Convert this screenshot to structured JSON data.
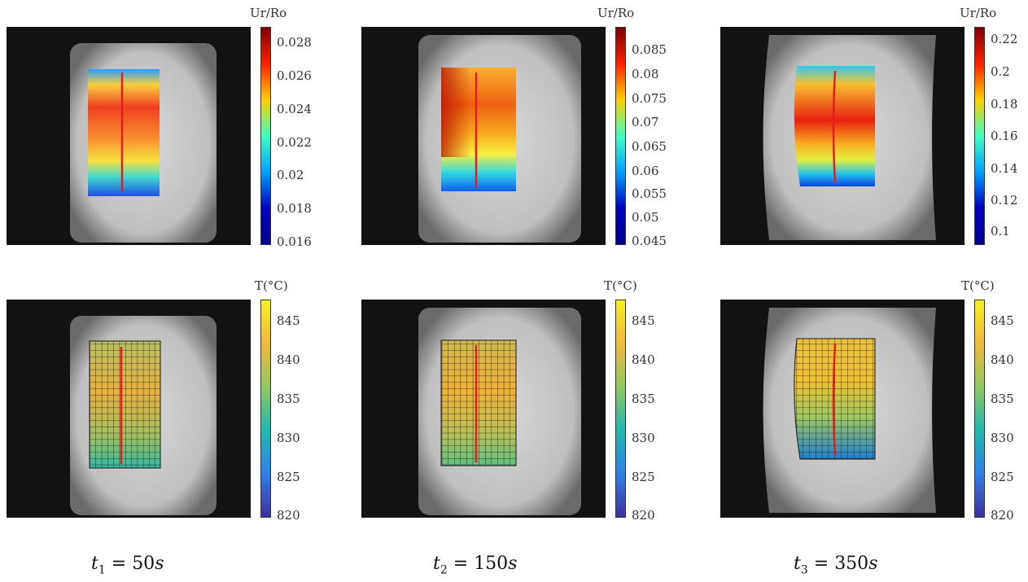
{
  "colorbars": {
    "disp_title": "Ur/Ro",
    "temp_title": "T(°C)",
    "disp1_ticks": [
      "0.028",
      "0.026",
      "0.024",
      "0.022",
      "0.02",
      "0.018",
      "0.016"
    ],
    "disp2_ticks": [
      "0.085",
      "0.08",
      "0.075",
      "0.07",
      "0.065",
      "0.06",
      "0.055",
      "0.05",
      "0.045"
    ],
    "disp3_ticks": [
      "0.22",
      "0.2",
      "0.18",
      "0.16",
      "0.14",
      "0.12",
      "0.1"
    ],
    "temp_ticks": [
      "845",
      "840",
      "835",
      "830",
      "825",
      "820"
    ]
  },
  "times": [
    {
      "var": "t",
      "sub": "1",
      "eq": " = ",
      "val": "50",
      "unit": "s"
    },
    {
      "var": "t",
      "sub": "2",
      "eq": " = ",
      "val": "150",
      "unit": "s"
    },
    {
      "var": "t",
      "sub": "3",
      "eq": " = ",
      "val": "350",
      "unit": "s"
    }
  ],
  "colors": {
    "crack_line": "#e02020",
    "grid_line": "#1a1a1a"
  }
}
